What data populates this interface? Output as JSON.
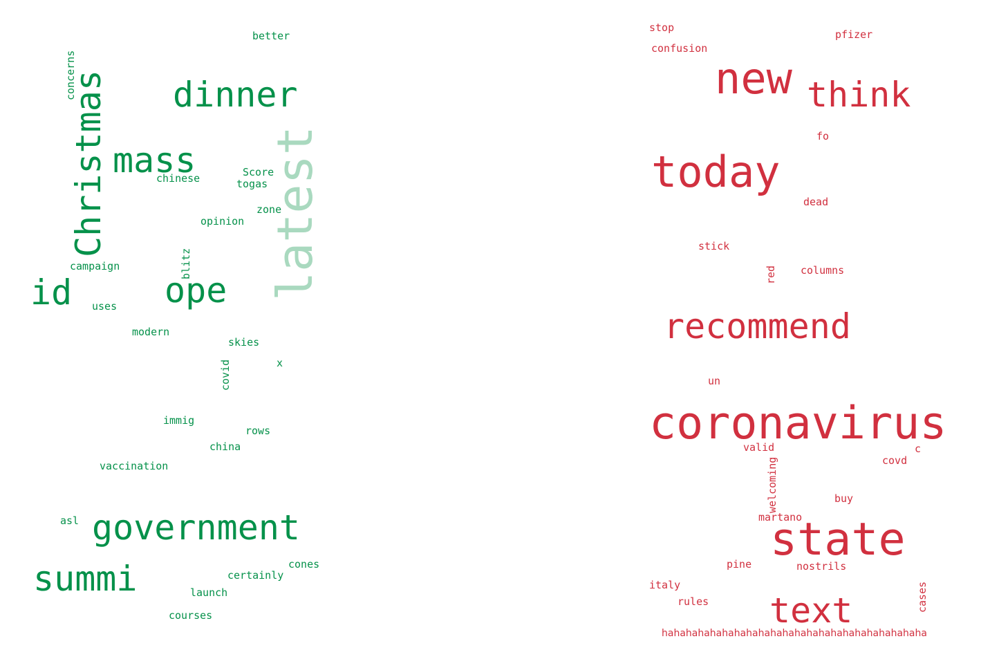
{
  "clouds": [
    {
      "id": "left",
      "color": "#05914a",
      "words": [
        "better",
        "concerns",
        "dinner",
        "Christmas",
        "mass",
        "latest",
        "Score",
        "chinese",
        "togas",
        "zone",
        "opinion",
        "id",
        "ope",
        "blitz",
        "campaign",
        "uses",
        "modern",
        "skies",
        "covid",
        "x",
        "immig",
        "rows",
        "china",
        "vaccination",
        "asl",
        "government",
        "summi",
        "cones",
        "certainly",
        "launch",
        "courses"
      ]
    },
    {
      "id": "right",
      "color": "#d1303f",
      "words": [
        "stop",
        "confusion",
        "pfizer",
        "new",
        "think",
        "fo",
        "today",
        "dead",
        "stick",
        "red",
        "columns",
        "recommend",
        "un",
        "coronavirus",
        "valid",
        "c",
        "covd",
        "welcoming",
        "buy",
        "martano",
        "state",
        "pine",
        "nostrils",
        "italy",
        "rules",
        "text",
        "cases",
        "hahahahahahahahahahahahahahahahahahahahahaha"
      ]
    }
  ]
}
